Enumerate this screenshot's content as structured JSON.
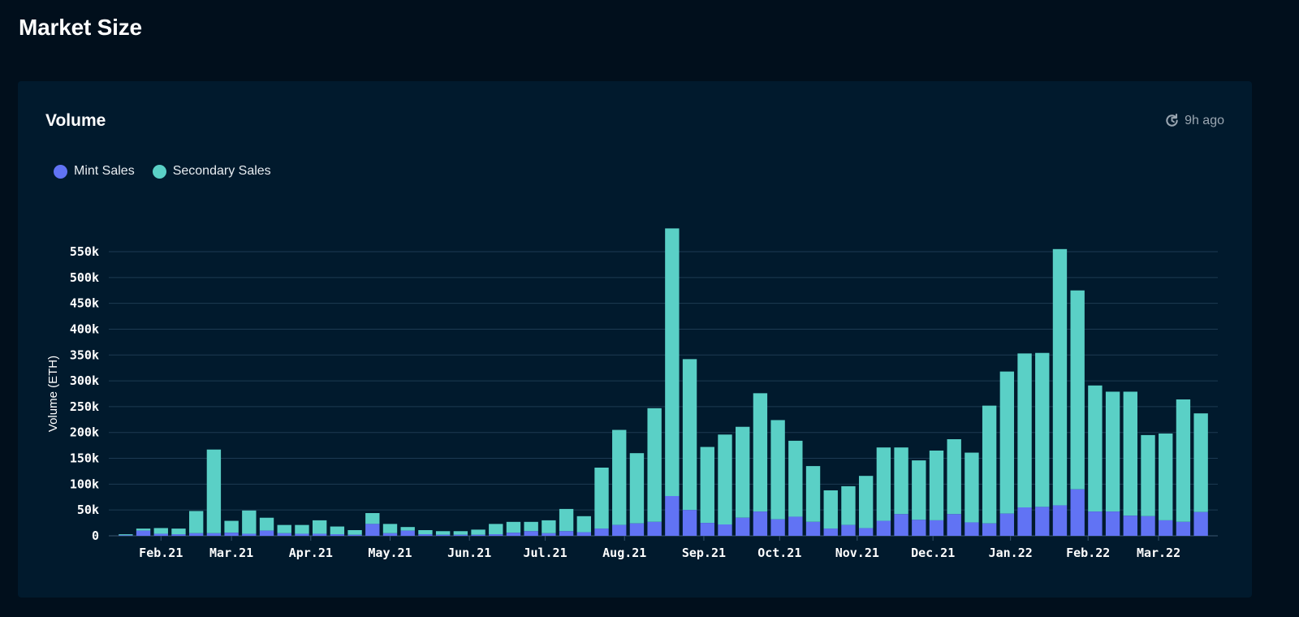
{
  "page": {
    "title": "Market Size"
  },
  "card": {
    "title": "Volume",
    "updated": "9h ago",
    "updated_icon": "clock-refresh-icon"
  },
  "colors": {
    "background": "#010f1c",
    "card": "#011a2d",
    "grid": "#1d3a52",
    "mint": "#6173f4",
    "secondary": "#5ad0c6"
  },
  "chart_data": {
    "type": "bar",
    "stacked": true,
    "ylabel": "Volume (ETH)",
    "xlabel": "",
    "ylim": [
      0,
      600000
    ],
    "y_ticks": [
      0,
      50000,
      100000,
      150000,
      200000,
      250000,
      300000,
      350000,
      400000,
      450000,
      500000,
      550000
    ],
    "y_tick_labels": [
      "0",
      "50k",
      "100k",
      "150k",
      "200k",
      "250k",
      "300k",
      "350k",
      "400k",
      "450k",
      "500k",
      "550k"
    ],
    "grid": true,
    "legend_position": "top-left",
    "x_tick_labels": [
      {
        "label": "Feb.21",
        "index": 2
      },
      {
        "label": "Mar.21",
        "index": 6
      },
      {
        "label": "Apr.21",
        "index": 10.5
      },
      {
        "label": "May.21",
        "index": 15
      },
      {
        "label": "Jun.21",
        "index": 19.5
      },
      {
        "label": "Jul.21",
        "index": 23.8
      },
      {
        "label": "Aug.21",
        "index": 28.3
      },
      {
        "label": "Sep.21",
        "index": 32.8
      },
      {
        "label": "Oct.21",
        "index": 37.1
      },
      {
        "label": "Nov.21",
        "index": 41.5
      },
      {
        "label": "Dec.21",
        "index": 45.8
      },
      {
        "label": "Jan.22",
        "index": 50.2
      },
      {
        "label": "Feb.22",
        "index": 54.6
      },
      {
        "label": "Mar.22",
        "index": 58.6
      }
    ],
    "series": [
      {
        "name": "Mint Sales",
        "color": "#6173f4",
        "values": [
          1000,
          10000,
          4000,
          3000,
          5000,
          5000,
          6000,
          4000,
          10000,
          5000,
          4000,
          4000,
          3000,
          2000,
          23000,
          5000,
          10000,
          3000,
          2000,
          2000,
          2000,
          3000,
          6000,
          9000,
          5000,
          9000,
          7000,
          14000,
          21000,
          24000,
          27000,
          77000,
          50000,
          25000,
          22000,
          35000,
          47000,
          32000,
          37000,
          27000,
          14000,
          21000,
          15000,
          29000,
          42000,
          31000,
          30000,
          42000,
          26000,
          24000,
          43000,
          55000,
          56000,
          59000,
          90000,
          47000,
          47000,
          39000,
          38000,
          30000,
          27000,
          46000
        ]
      },
      {
        "name": "Secondary Sales",
        "color": "#5ad0c6",
        "values": [
          2000,
          4000,
          11000,
          11000,
          43000,
          162000,
          23000,
          45000,
          25000,
          16000,
          17000,
          26000,
          15000,
          9000,
          21000,
          18000,
          7000,
          8000,
          7000,
          7000,
          10000,
          20000,
          21000,
          18000,
          25000,
          43000,
          31000,
          118000,
          184000,
          136000,
          220000,
          518000,
          292000,
          147000,
          174000,
          176000,
          229000,
          192000,
          147000,
          108000,
          74000,
          75000,
          101000,
          142000,
          129000,
          115000,
          135000,
          145000,
          135000,
          228000,
          275000,
          298000,
          298000,
          496000,
          385000,
          244000,
          232000,
          240000,
          157000,
          168000,
          237000,
          191000
        ]
      }
    ]
  }
}
